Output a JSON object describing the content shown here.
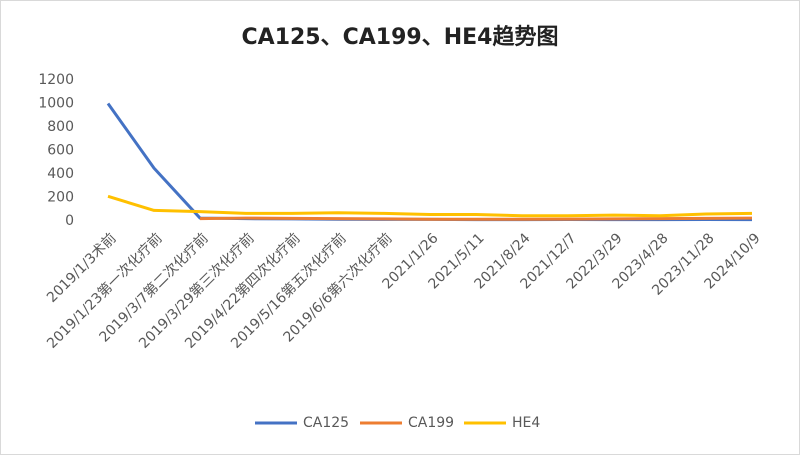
{
  "chart_data": {
    "type": "line",
    "title": "CA125、CA199、HE4趋势图",
    "categories": [
      "2019/1/3术前",
      "2019/1/23第一次化疗前",
      "2019/3/7第二次化疗前",
      "2019/3/29第三次化疗前",
      "2019/4/22第四次化疗前",
      "2019/5/16第五次化疗前",
      "2019/6/6第六次化疗前",
      "2021/1/26",
      "2021/5/11",
      "2021/8/24",
      "2021/12/7",
      "2022/3/29",
      "2023/4/28",
      "2023/11/28",
      "2024/10/9"
    ],
    "series": [
      {
        "name": "CA125",
        "color": "#4472c4",
        "values": [
          1000,
          450,
          25,
          20,
          18,
          15,
          14,
          14,
          12,
          12,
          13,
          12,
          12,
          13,
          12
        ]
      },
      {
        "name": "CA199",
        "color": "#ed7d31",
        "values": [
          null,
          null,
          20,
          25,
          22,
          20,
          18,
          15,
          15,
          15,
          16,
          18,
          20,
          22,
          25
        ]
      },
      {
        "name": "HE4",
        "color": "#ffc000",
        "values": [
          210,
          90,
          80,
          65,
          65,
          70,
          65,
          55,
          55,
          45,
          45,
          50,
          45,
          60,
          65
        ]
      }
    ],
    "ylim": [
      0,
      1200
    ],
    "yticks": [
      0,
      200,
      400,
      600,
      800,
      1000,
      1200
    ],
    "grid": false,
    "legend": "bottom"
  }
}
